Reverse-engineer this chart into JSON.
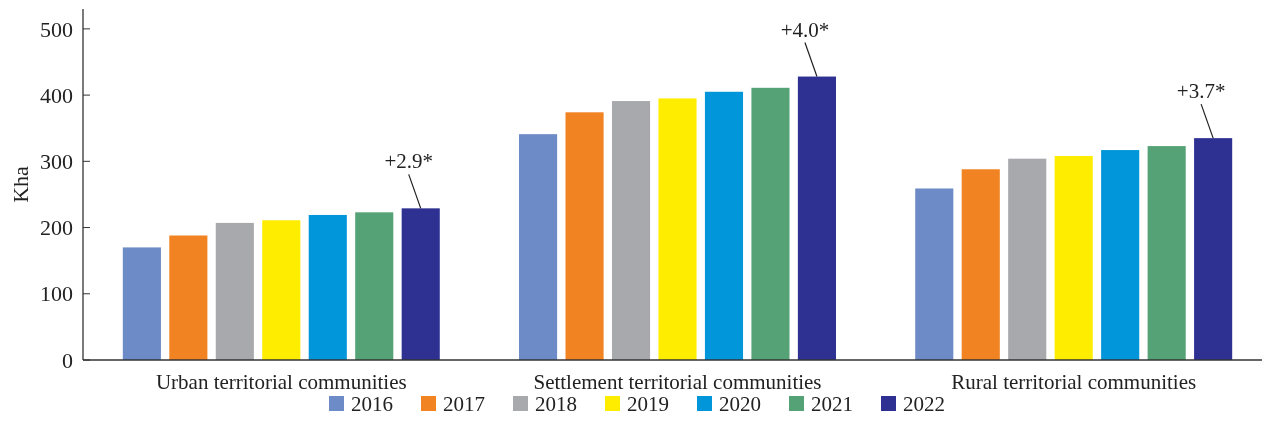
{
  "chart_data": {
    "type": "bar",
    "ylabel": "Kha",
    "categories": [
      "Urban territorial communities",
      "Settlement territorial communities",
      "Rural territorial communities"
    ],
    "series": [
      {
        "name": "2016",
        "color": "#6d8bc6",
        "values": [
          170,
          341,
          259
        ]
      },
      {
        "name": "2017",
        "color": "#f28322",
        "values": [
          188,
          374,
          288
        ]
      },
      {
        "name": "2018",
        "color": "#a8a9ad",
        "values": [
          207,
          391,
          304
        ]
      },
      {
        "name": "2019",
        "color": "#ffed00",
        "values": [
          211,
          395,
          308
        ]
      },
      {
        "name": "2020",
        "color": "#0096d9",
        "values": [
          219,
          405,
          317
        ]
      },
      {
        "name": "2021",
        "color": "#55a276",
        "values": [
          223,
          411,
          323
        ]
      },
      {
        "name": "2022",
        "color": "#2e3192",
        "values": [
          229,
          428,
          335
        ]
      }
    ],
    "ylim": [
      0,
      530
    ],
    "yticks": [
      0,
      100,
      200,
      300,
      400,
      500
    ],
    "grid": false,
    "legend": "bottom",
    "annotations": [
      "+2.9*",
      "+4.0*",
      "+3.7*"
    ]
  }
}
